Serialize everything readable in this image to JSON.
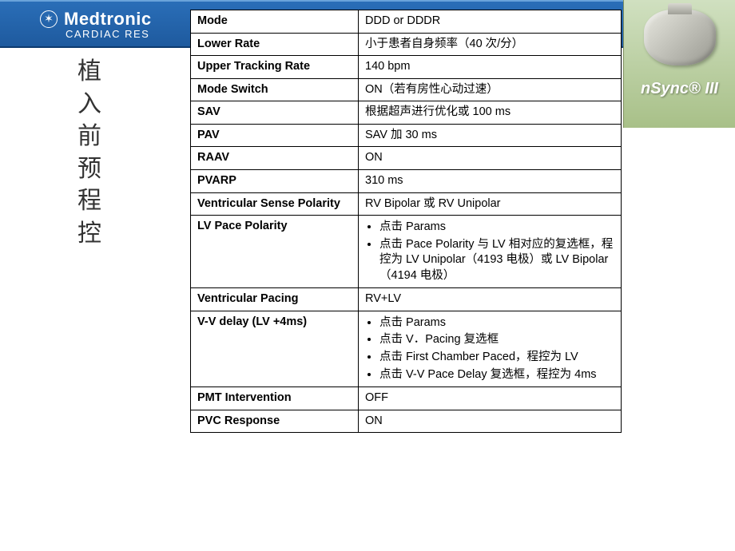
{
  "header": {
    "brand": "Medtronic",
    "brand_sub": "CARDIAC RES",
    "device_label": "nSync® III"
  },
  "side_title": "植入前预程控",
  "rows": [
    {
      "label": "Mode",
      "value": "DDD or DDDR"
    },
    {
      "label": "Lower Rate",
      "value": "小于患者自身频率（40 次/分）"
    },
    {
      "label": "Upper Tracking Rate",
      "value": "140 bpm"
    },
    {
      "label": "Mode Switch",
      "value": "ON（若有房性心动过速）"
    },
    {
      "label": "SAV",
      "value": "根据超声进行优化或 100 ms"
    },
    {
      "label": "PAV",
      "value": "SAV 加 30 ms"
    },
    {
      "label": "RAAV",
      "value": "ON"
    },
    {
      "label": "PVARP",
      "value": "310 ms"
    },
    {
      "label": "Ventricular Sense Polarity",
      "value": "RV Bipolar 或 RV Unipolar"
    },
    {
      "label": "LV Pace Polarity",
      "list": [
        "点击 Params",
        "点击 Pace Polarity 与 LV 相对应的复选框，程控为 LV Unipolar（4193 电极）或 LV Bipolar（4194 电极）"
      ]
    },
    {
      "label": "Ventricular  Pacing",
      "value": "RV+LV"
    },
    {
      "label": "V-V delay (LV +4ms)",
      "list": [
        "点击 Params",
        "点击 V．Pacing 复选框",
        "点击 First Chamber Paced，程控为 LV",
        "点击 V-V Pace Delay 复选框，程控为 4ms"
      ]
    },
    {
      "label": "PMT Intervention",
      "value": "OFF"
    },
    {
      "label": "PVC Response",
      "value": "ON"
    }
  ],
  "colors": {
    "header_top": "#2a6eb8",
    "header_bottom": "#1e5a9e",
    "panel_top": "#d0e0c0",
    "panel_bottom": "#a8c088",
    "text": "#333333",
    "border": "#000000"
  }
}
